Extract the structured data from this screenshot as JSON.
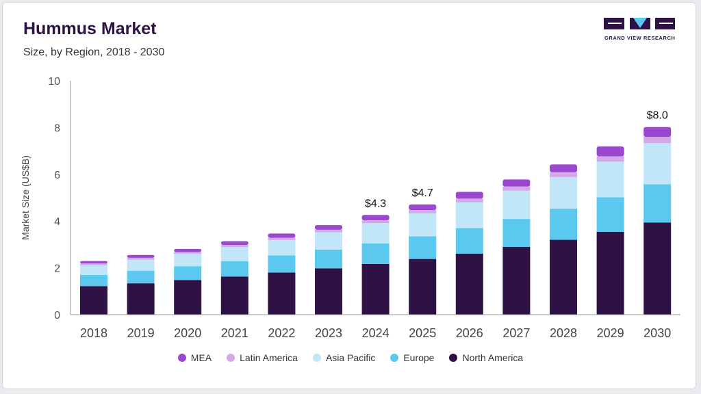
{
  "header": {
    "title": "Hummus Market",
    "subtitle": "Size, by Region, 2018 - 2030"
  },
  "logo": {
    "text": "GRAND VIEW RESEARCH"
  },
  "colors": {
    "north_america": "#2e1145",
    "europe": "#5bc8ef",
    "asia_pacific": "#c1e6f8",
    "latin_america": "#d4a9ea",
    "mea": "#9a48d0"
  },
  "chart_data": {
    "type": "bar",
    "stacked": true,
    "title": "Hummus Market",
    "subtitle": "Size, by Region, 2018 - 2030",
    "xlabel": "",
    "ylabel": "Market Size (US$B)",
    "ylim": [
      0,
      10
    ],
    "yticks": [
      0,
      2,
      4,
      6,
      8,
      10
    ],
    "categories": [
      "2018",
      "2019",
      "2020",
      "2021",
      "2022",
      "2023",
      "2024",
      "2025",
      "2026",
      "2027",
      "2028",
      "2029",
      "2030"
    ],
    "series": [
      {
        "name": "North America",
        "color": "#2e1145",
        "values": [
          1.22,
          1.34,
          1.48,
          1.63,
          1.8,
          1.98,
          2.17,
          2.38,
          2.61,
          2.9,
          3.2,
          3.54,
          3.94
        ]
      },
      {
        "name": "Europe",
        "color": "#5bc8ef",
        "values": [
          0.48,
          0.54,
          0.59,
          0.66,
          0.73,
          0.8,
          0.88,
          0.97,
          1.09,
          1.19,
          1.33,
          1.48,
          1.63
        ]
      },
      {
        "name": "Asia Pacific",
        "color": "#c1e6f8",
        "values": [
          0.42,
          0.47,
          0.53,
          0.6,
          0.66,
          0.74,
          0.86,
          0.98,
          1.1,
          1.21,
          1.35,
          1.52,
          1.76
        ]
      },
      {
        "name": "Latin America",
        "color": "#d4a9ea",
        "values": [
          0.07,
          0.08,
          0.08,
          0.09,
          0.1,
          0.11,
          0.12,
          0.14,
          0.16,
          0.18,
          0.21,
          0.23,
          0.27
        ]
      },
      {
        "name": "MEA",
        "color": "#9a48d0",
        "values": [
          0.1,
          0.12,
          0.13,
          0.16,
          0.18,
          0.2,
          0.23,
          0.24,
          0.29,
          0.3,
          0.33,
          0.42,
          0.42
        ]
      }
    ],
    "annotations": [
      {
        "category": "2024",
        "label": "$4.3"
      },
      {
        "category": "2025",
        "label": "$4.7"
      },
      {
        "category": "2030",
        "label": "$8.0"
      }
    ],
    "legend": [
      "MEA",
      "Latin America",
      "Asia Pacific",
      "Europe",
      "North America"
    ],
    "legend_position": "bottom",
    "grid": false
  }
}
